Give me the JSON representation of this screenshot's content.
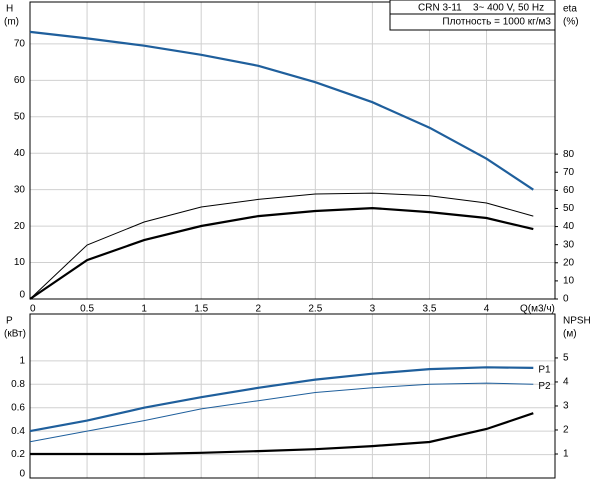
{
  "chart_data": [
    {
      "type": "line",
      "annotations": [
        "CRN 3-11",
        "3~ 400 V, 50 Hz",
        "Плотность = 1000 кг/м3"
      ],
      "ylabel": "H",
      "yunit": "(m)",
      "y2label": "eta",
      "y2unit": "(%)",
      "xlabel": "Q(м3/ч)",
      "x": [
        0,
        0.5,
        1,
        1.5,
        2,
        2.5,
        3,
        3.5,
        4,
        4.41
      ],
      "xlim": [
        0,
        4.6
      ],
      "xticks": [
        0,
        0.5,
        1,
        1.5,
        2,
        2.5,
        3,
        3.5,
        4
      ],
      "xtick_labels": true,
      "ylim": [
        0,
        81.5
      ],
      "yticks": [
        0,
        10,
        20,
        30,
        40,
        50,
        60,
        70
      ],
      "y2lim": [
        0,
        164
      ],
      "y2ticks": [
        0,
        10,
        20,
        30,
        40,
        50,
        60,
        70,
        80
      ],
      "grid": true,
      "series": [
        {
          "color": "#1f5f9c",
          "thick": true,
          "values": [
            73.3,
            71.5,
            69.5,
            67,
            64,
            59.5,
            54,
            47,
            38.5,
            30
          ]
        },
        {
          "color": "#000000",
          "thick": false,
          "axis": "y2",
          "values": [
            0,
            29.8,
            42.5,
            50.8,
            55,
            58,
            58.5,
            57,
            53,
            45.8
          ]
        },
        {
          "color": "#000000",
          "thick": true,
          "axis": "y2",
          "values": [
            0,
            21.5,
            32.5,
            40.3,
            45.8,
            48.6,
            50.2,
            48,
            44.7,
            38.6
          ]
        }
      ]
    },
    {
      "type": "line",
      "ylabel": "P",
      "yunit": "(кВт)",
      "y2label": "NPSH",
      "y2unit": "(м)",
      "x": [
        0,
        0.5,
        1,
        1.5,
        2,
        2.5,
        3,
        3.5,
        4,
        4.41
      ],
      "xlim": [
        0,
        4.6
      ],
      "xticks": [
        0,
        0.5,
        1,
        1.5,
        2,
        2.5,
        3,
        3.5,
        4
      ],
      "xtick_labels": false,
      "ylim": [
        0,
        1.4
      ],
      "yticks": [
        0,
        0.2,
        0.4,
        0.6,
        0.8,
        1
      ],
      "y2lim": [
        0,
        6.83
      ],
      "y2ticks": [
        1,
        2,
        3,
        4,
        5
      ],
      "grid": true,
      "series": [
        {
          "name": "P1",
          "color": "#1f5f9c",
          "thick": true,
          "values": [
            0.4,
            0.49,
            0.6,
            0.69,
            0.77,
            0.84,
            0.89,
            0.93,
            0.945,
            0.94
          ]
        },
        {
          "name": "P2",
          "color": "#1f5f9c",
          "thick": false,
          "values": [
            0.31,
            0.4,
            0.49,
            0.59,
            0.66,
            0.73,
            0.77,
            0.8,
            0.81,
            0.8
          ]
        },
        {
          "color": "#000000",
          "thick": true,
          "axis": "y2",
          "values": [
            1.0,
            1.0,
            1.0,
            1.05,
            1.12,
            1.2,
            1.33,
            1.5,
            2.04,
            2.7
          ]
        }
      ]
    }
  ]
}
